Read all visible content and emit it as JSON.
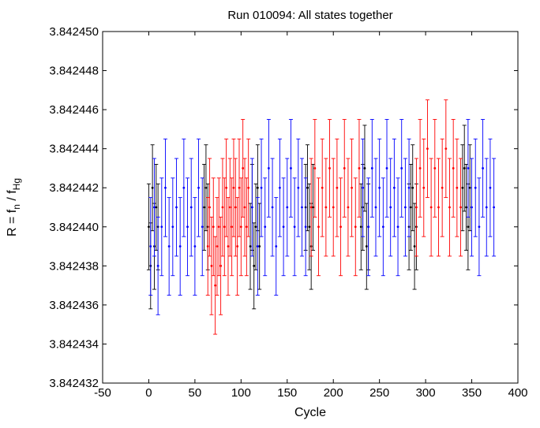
{
  "chart_data": {
    "type": "scatter",
    "title": "Run 010094: All states together",
    "xlabel": "Cycle",
    "ylabel": {
      "main": "R = f",
      "sub1": "n",
      "mid": " / f",
      "sub2": "Hg"
    },
    "xlim": [
      -50,
      400
    ],
    "ylim": [
      3.842432,
      3.84245
    ],
    "xticks": [
      -50,
      0,
      50,
      100,
      150,
      200,
      250,
      300,
      350,
      400
    ],
    "xtick_labels": [
      "-50",
      "0",
      "50",
      "100",
      "150",
      "200",
      "250",
      "300",
      "350",
      "400"
    ],
    "yticks": [
      3.842432,
      3.842434,
      3.842436,
      3.842438,
      3.84244,
      3.842442,
      3.842444,
      3.842446,
      3.842448,
      3.84245
    ],
    "ytick_labels": [
      "3.842432",
      "3.842434",
      "3.842436",
      "3.842438",
      "3.842440",
      "3.842442",
      "3.842444",
      "3.842446",
      "3.842448",
      "3.842450"
    ],
    "grid": false,
    "legend": "none",
    "error_bars": true,
    "series": [
      {
        "color": "#000000",
        "x": [
          0,
          2,
          4,
          6,
          8,
          10,
          60,
          62,
          64,
          110,
          112,
          114,
          116,
          118,
          120,
          170,
          172,
          174,
          176,
          178,
          230,
          232,
          234,
          236,
          238,
          282,
          284,
          286,
          288,
          290,
          340,
          342,
          344,
          346,
          348
        ],
        "values": [
          3.84244,
          3.842438,
          3.842442,
          3.842439,
          3.842441,
          3.84244,
          3.842441,
          3.842442,
          3.84244,
          3.842439,
          3.842441,
          3.842438,
          3.84244,
          3.842442,
          3.842439,
          3.842441,
          3.842442,
          3.84244,
          3.842439,
          3.842441,
          3.84244,
          3.842441,
          3.842443,
          3.842439,
          3.84244,
          3.84244,
          3.842441,
          3.842442,
          3.842439,
          3.84244,
          3.842442,
          3.842443,
          3.842441,
          3.84244,
          3.842442
        ],
        "errors": [
          2.2e-06
        ]
      },
      {
        "color": "#ff0000",
        "x": [
          64,
          66,
          68,
          70,
          72,
          74,
          76,
          78,
          80,
          82,
          84,
          86,
          88,
          90,
          92,
          94,
          96,
          98,
          100,
          102,
          104,
          106,
          108,
          176,
          180,
          184,
          188,
          192,
          196,
          200,
          204,
          208,
          212,
          216,
          220,
          224,
          228,
          290,
          294,
          298,
          302,
          306,
          310,
          314,
          318,
          322,
          326,
          330,
          334,
          338
        ],
        "values": [
          3.842439,
          3.842441,
          3.842438,
          3.84244,
          3.842437,
          3.842439,
          3.84244,
          3.842438,
          3.842441,
          3.84244,
          3.842442,
          3.842439,
          3.842441,
          3.84244,
          3.842442,
          3.842441,
          3.842439,
          3.842442,
          3.84244,
          3.842443,
          3.842441,
          3.84244,
          3.842442,
          3.842441,
          3.842443,
          3.84244,
          3.842442,
          3.842441,
          3.842443,
          3.842441,
          3.842442,
          3.84244,
          3.842443,
          3.842441,
          3.842442,
          3.84244,
          3.842443,
          3.842441,
          3.842443,
          3.842442,
          3.842444,
          3.842441,
          3.842443,
          3.842441,
          3.842442,
          3.842444,
          3.842441,
          3.842443,
          3.842442,
          3.842441
        ],
        "errors": [
          2.5e-06
        ]
      },
      {
        "color": "#0000ff",
        "x": [
          2,
          6,
          10,
          14,
          18,
          22,
          26,
          30,
          34,
          38,
          42,
          46,
          50,
          54,
          58,
          112,
          118,
          122,
          126,
          130,
          134,
          138,
          142,
          146,
          150,
          154,
          158,
          162,
          166,
          170,
          232,
          238,
          242,
          246,
          250,
          254,
          258,
          262,
          266,
          270,
          274,
          278,
          282,
          346,
          350,
          354,
          358,
          362,
          366,
          370,
          374
        ],
        "values": [
          3.842439,
          3.842441,
          3.842438,
          3.84244,
          3.842442,
          3.842439,
          3.84244,
          3.842441,
          3.842439,
          3.842442,
          3.84244,
          3.842441,
          3.842439,
          3.842442,
          3.84244,
          3.842441,
          3.842439,
          3.842442,
          3.84244,
          3.842443,
          3.842441,
          3.842439,
          3.842442,
          3.84244,
          3.842441,
          3.842443,
          3.84244,
          3.842442,
          3.842441,
          3.84244,
          3.842442,
          3.84244,
          3.842443,
          3.842441,
          3.842442,
          3.84244,
          3.842443,
          3.842441,
          3.842442,
          3.84244,
          3.842443,
          3.842441,
          3.842442,
          3.842443,
          3.842441,
          3.842442,
          3.84244,
          3.842443,
          3.842441,
          3.842442,
          3.842441
        ],
        "errors": [
          2.5e-06
        ]
      }
    ]
  }
}
